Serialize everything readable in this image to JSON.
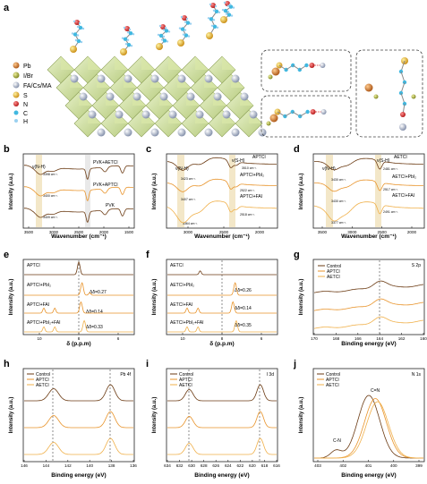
{
  "panel_a": {
    "letter": "a",
    "legend": [
      {
        "label": "Pb",
        "color": "#c87028"
      },
      {
        "label": "I/Br",
        "color": "#9aa02a"
      },
      {
        "label": "FA/Cs/MA",
        "color": "#9aa8c0"
      },
      {
        "label": "S",
        "color": "#e8b020"
      },
      {
        "label": "N",
        "color": "#d82020"
      },
      {
        "label": "C",
        "color": "#40b8e0"
      },
      {
        "label": "H",
        "color": "#9ad0f0"
      }
    ]
  },
  "panel_b": {
    "letter": "b",
    "ylabel": "Intensity (a.u.)",
    "xlabel": "Wavenumber (cm⁻¹)",
    "peak_label": "ν(N-H)",
    "xticks": [
      "3500",
      "3000",
      "2500",
      "2000",
      "1500"
    ],
    "labels": [
      "PVK+AETCI",
      "PVK+APTCI",
      "PVK"
    ],
    "annotations": [
      "3398 cm⁻¹",
      "3400 cm⁻¹",
      "3409 cm⁻¹"
    ],
    "colors": [
      "#6b3a12",
      "#e8932a",
      "#6b3a12"
    ]
  },
  "panel_c": {
    "letter": "c",
    "ylabel": "Intensity (a.u.)",
    "xlabel": "Wavenumber (cm⁻¹)",
    "peak_labels": [
      "ν(N-H)",
      "ν(S-H)"
    ],
    "xticks": [
      "3000",
      "2500",
      "2000"
    ],
    "labels": [
      "APTCI",
      "APTCI+PbI₂",
      "APTCI+FAI"
    ],
    "annotations": [
      "3423 cm⁻¹",
      "3510 cm⁻¹",
      "3407 cm⁻¹",
      "2522 cm⁻¹",
      "3364 cm⁻¹",
      "2518 cm⁻¹"
    ]
  },
  "panel_d": {
    "letter": "d",
    "ylabel": "Intensity (a.u.)",
    "xlabel": "Wavenumber (cm⁻¹)",
    "peak_labels": [
      "ν(N-H)",
      "ν(S-H)"
    ],
    "xticks": [
      "3500",
      "3000",
      "2500",
      "2000"
    ],
    "labels": [
      "AETCI",
      "AETCI+PbI₂",
      "AETCI+FAI"
    ],
    "annotations": [
      "3430 cm⁻¹",
      "2481 cm⁻¹",
      "3430 cm⁻¹",
      "2517 cm⁻¹",
      "3377 cm⁻¹",
      "2491 cm⁻¹"
    ]
  },
  "panel_e": {
    "letter": "e",
    "ylabel": "Intensity (a.u.)",
    "xlabel": "δ (p.p.m)",
    "xticks": [
      "10",
      "8",
      "6"
    ],
    "labels": [
      "APTCI",
      "APTCI+PbI₂",
      "APTCI+FAI",
      "APTCI+PbI₂+FAI"
    ],
    "shifts": [
      "Δδ=0.27",
      "Δδ=0.14",
      "Δδ=0.33"
    ]
  },
  "panel_f": {
    "letter": "f",
    "ylabel": "Intensity (a.u.)",
    "xlabel": "δ (p.p.m)",
    "xticks": [
      "10",
      "8",
      "6"
    ],
    "labels": [
      "AETCI",
      "AETCI+PbI₂",
      "AETCI+FAI",
      "AETCI+PbI₂+FAI"
    ],
    "shifts": [
      "Δδ=0.26",
      "Δδ=0.14",
      "Δδ=0.35"
    ]
  },
  "panel_g": {
    "letter": "g",
    "ylabel": "Intensity (a.u.)",
    "xlabel": "Binding energy (eV)",
    "xticks": [
      "170",
      "168",
      "166",
      "164",
      "162",
      "160"
    ],
    "title": "S 2p",
    "legend": [
      "Control",
      "APTCI",
      "AETCI"
    ]
  },
  "panel_h": {
    "letter": "h",
    "ylabel": "Intensity (a.u.)",
    "xlabel": "Binding energy (eV)",
    "xticks": [
      "146",
      "144",
      "142",
      "140",
      "138",
      "136"
    ],
    "title": "Pb 4f",
    "legend": [
      "Control",
      "APTCI",
      "AETCI"
    ]
  },
  "panel_i": {
    "letter": "i",
    "ylabel": "Intensity (a.u.)",
    "xlabel": "Binding energy (eV)",
    "xticks": [
      "634",
      "632",
      "630",
      "628",
      "626",
      "624",
      "622",
      "620",
      "618",
      "616"
    ],
    "title": "I 3d",
    "legend": [
      "Control",
      "APTCI",
      "AETCI"
    ]
  },
  "panel_j": {
    "letter": "j",
    "ylabel": "Intensity (a.u.)",
    "xlabel": "Binding energy (eV)",
    "xticks": [
      "403",
      "402",
      "401",
      "400",
      "399"
    ],
    "title": "N 1s",
    "legend": [
      "Control",
      "APTCI",
      "AETCI"
    ],
    "peak_labels": [
      "C=N",
      "C-N"
    ]
  },
  "colors": {
    "control": "#6b3a12",
    "aptci": "#e8932a",
    "aetci": "#f0b04a",
    "highlight": "#f3e7c8"
  }
}
